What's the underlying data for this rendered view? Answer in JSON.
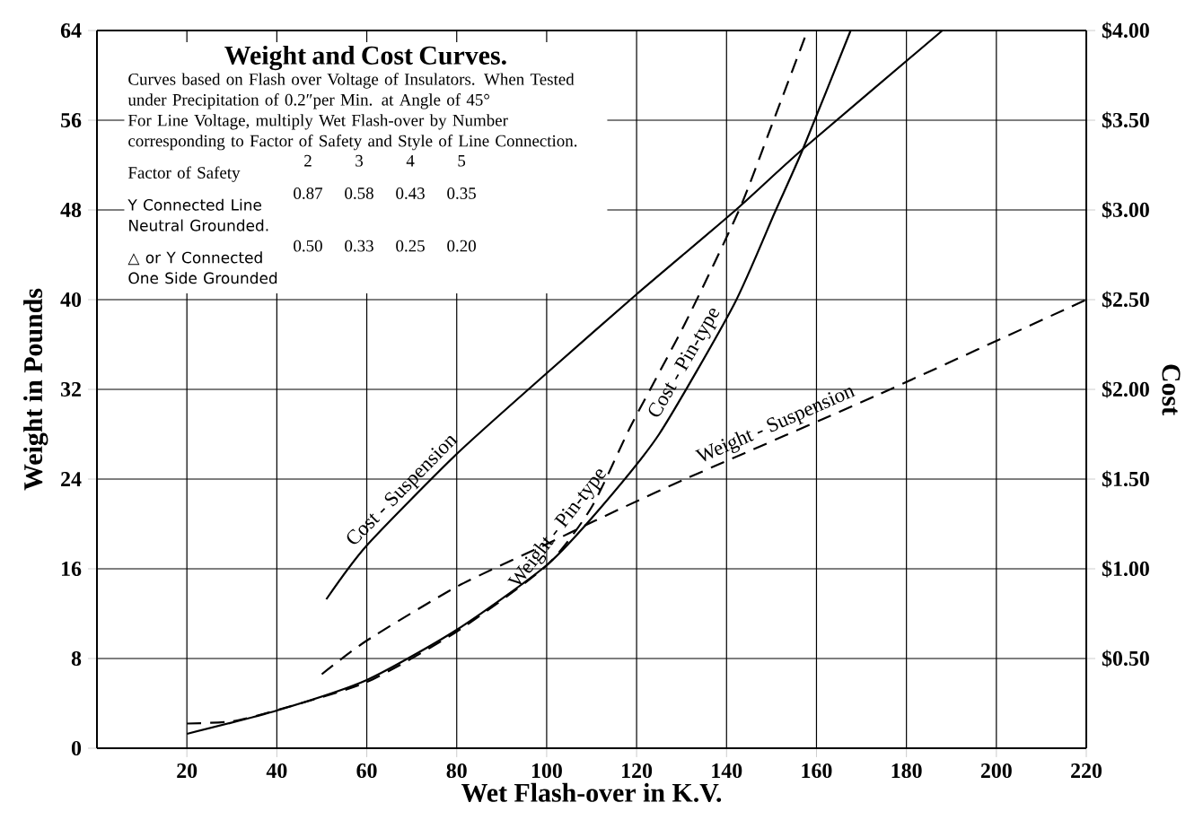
{
  "chart_data": {
    "type": "line",
    "title": "Weight and Cost Curves.",
    "xlabel": "Wet Flash-over in K.V.",
    "ylabel": "Weight in Pounds",
    "y2label": "Cost",
    "annotations": [
      "Curves based on Flash over Voltage of Insulators. When Tested under Precipitation of 0.2″per Min. at Angle of 45°",
      "For Line Voltage, multiply Wet Flash-over by Number corresponding to Factor of Safety and Style of Line Connection.",
      "Factor of Safety",
      "2",
      "3",
      "4",
      "5",
      "Y Connected Line Neutral Grounded.",
      "0.87",
      "0.58",
      "0.43",
      "0.35",
      "△ or Y Connected One Side Grounded",
      "0.50",
      "0.33",
      "0.25",
      "0.20"
    ],
    "xlim": [
      0,
      220
    ],
    "xticks": [
      20,
      40,
      60,
      80,
      100,
      120,
      140,
      160,
      180,
      200,
      220
    ],
    "ylim": [
      0,
      64
    ],
    "yticks": [
      0,
      8,
      16,
      24,
      32,
      40,
      48,
      56,
      64
    ],
    "y2lim": [
      0,
      4
    ],
    "y2ticks": [
      {
        "value": 0.5,
        "label": "$0.50"
      },
      {
        "value": 1,
        "label": "$1.00"
      },
      {
        "value": 1.5,
        "label": "$1.50"
      },
      {
        "value": 2,
        "label": "$2.00"
      },
      {
        "value": 2.5,
        "label": "$2.50"
      },
      {
        "value": 3,
        "label": "$3.00"
      },
      {
        "value": 3.5,
        "label": "$3.50"
      },
      {
        "value": 4,
        "label": "$4.00"
      }
    ],
    "grid": true,
    "series": [
      {
        "name": "Cost - Suspension",
        "color": "#000000",
        "line_style": "solid",
        "axis": "y2",
        "x": [
          51,
          60,
          80,
          100,
          120,
          141.6,
          157,
          188
        ],
        "values": [
          0.83,
          1.13,
          1.64,
          2.09,
          2.53,
          2.99,
          3.34,
          4.0
        ]
      },
      {
        "name": "Weight - Pin-type",
        "color": "#000000",
        "line_style": "dashed",
        "x": [
          20,
          30,
          40,
          60,
          80,
          100,
          110,
          118.8,
          130.8,
          142.8,
          150,
          158
        ],
        "values": [
          2.2,
          2.4,
          3.4,
          5.9,
          10.4,
          16.3,
          21.5,
          28.8,
          37.9,
          48,
          55.5,
          64
        ]
      },
      {
        "name": "Cost - Pin-type",
        "color": "#000000",
        "line_style": "solid",
        "axis": "y2",
        "x": [
          20,
          40,
          60,
          80,
          100,
          112,
          125,
          141.6,
          150.8,
          157,
          167.6
        ],
        "values": [
          0.08,
          0.21,
          0.38,
          0.66,
          1.02,
          1.34,
          1.75,
          2.47,
          2.99,
          3.34,
          4.0
        ]
      },
      {
        "name": "Weight - Suspension",
        "color": "#000000",
        "line_style": "dashed",
        "x": [
          50,
          60,
          80,
          100,
          110.8,
          130.8,
          173.6,
          220
        ],
        "values": [
          6.6,
          9.6,
          14.4,
          18.2,
          20.3,
          24,
          31.5,
          40
        ]
      }
    ]
  }
}
